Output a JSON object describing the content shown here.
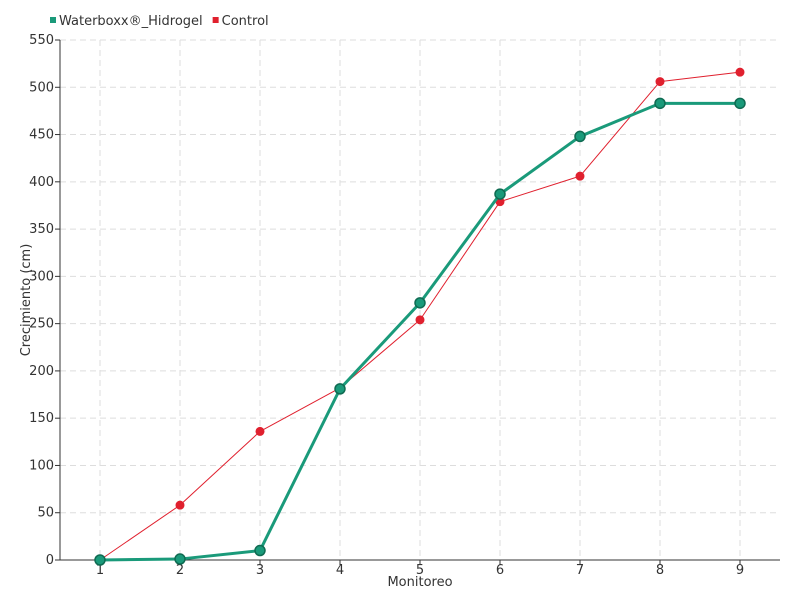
{
  "chart_data": {
    "type": "line",
    "xlabel": "Monitoreo",
    "ylabel": "Crecimiento (cm)",
    "categories": [
      "1",
      "2",
      "3",
      "4",
      "5",
      "6",
      "7",
      "8",
      "9"
    ],
    "ylim": [
      0,
      550
    ],
    "yticks": [
      0,
      50,
      100,
      150,
      200,
      250,
      300,
      350,
      400,
      450,
      500,
      550
    ],
    "grid": true,
    "legend_position": "top-left",
    "series": [
      {
        "name": "Waterboxx®_Hidrogel",
        "color": "#1a9a7a",
        "values": [
          0,
          1,
          10,
          181,
          272,
          387,
          448,
          483,
          483
        ]
      },
      {
        "name": "Control",
        "color": "#e0202e",
        "values": [
          0,
          58,
          136,
          182,
          254,
          379,
          406,
          506,
          516
        ]
      }
    ]
  }
}
